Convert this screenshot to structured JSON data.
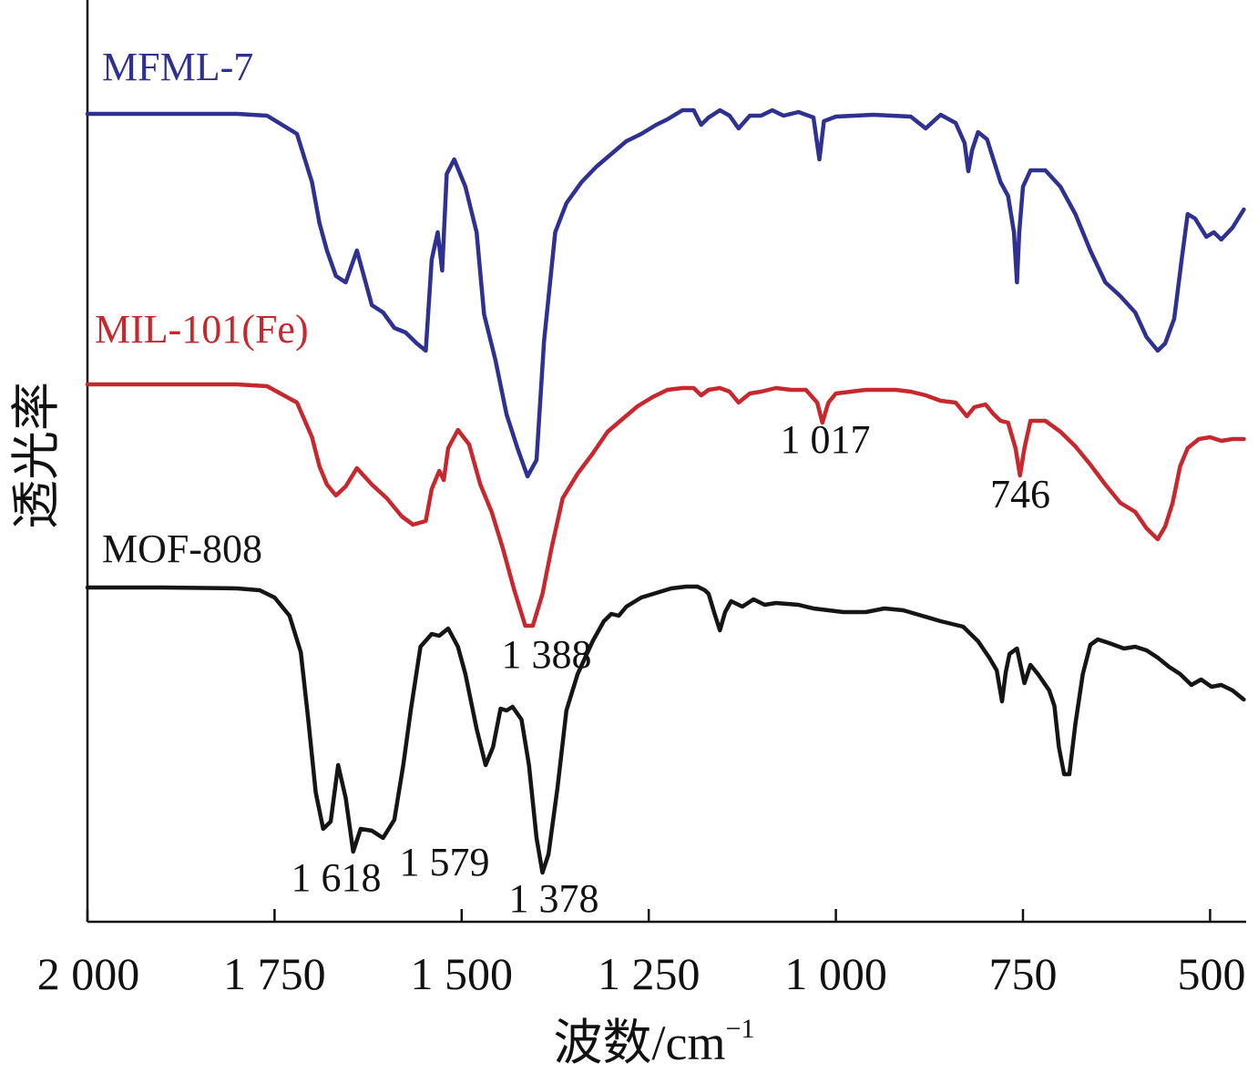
{
  "chart_data": {
    "type": "line",
    "xlabel": "波数/cm",
    "xlabel_superscript": "−1",
    "ylabel": "透光率",
    "xlim": [
      2000,
      455
    ],
    "x_reversed": true,
    "x_ticks": [
      2000,
      1750,
      1500,
      1250,
      1000,
      750,
      500
    ],
    "x_tick_labels": [
      "2 000",
      "1 750",
      "1 500",
      "1 250",
      "1 000",
      "750",
      "500"
    ],
    "y_ticks_shown": false,
    "grid": false,
    "legend": "none",
    "series": [
      {
        "name": "MFML-7",
        "color": "#2e3192",
        "points": [
          [
            2000,
            10
          ],
          [
            1900,
            10
          ],
          [
            1800,
            10
          ],
          [
            1760,
            12
          ],
          [
            1720,
            32
          ],
          [
            1700,
            85
          ],
          [
            1690,
            130
          ],
          [
            1680,
            160
          ],
          [
            1668,
            188
          ],
          [
            1655,
            195
          ],
          [
            1640,
            160
          ],
          [
            1620,
            220
          ],
          [
            1605,
            228
          ],
          [
            1590,
            245
          ],
          [
            1575,
            250
          ],
          [
            1560,
            262
          ],
          [
            1548,
            270
          ],
          [
            1540,
            170
          ],
          [
            1532,
            140
          ],
          [
            1526,
            182
          ],
          [
            1520,
            76
          ],
          [
            1510,
            60
          ],
          [
            1495,
            90
          ],
          [
            1480,
            140
          ],
          [
            1470,
            230
          ],
          [
            1455,
            280
          ],
          [
            1440,
            340
          ],
          [
            1425,
            378
          ],
          [
            1412,
            408
          ],
          [
            1400,
            390
          ],
          [
            1390,
            260
          ],
          [
            1375,
            140
          ],
          [
            1360,
            108
          ],
          [
            1340,
            85
          ],
          [
            1320,
            68
          ],
          [
            1300,
            54
          ],
          [
            1280,
            40
          ],
          [
            1260,
            32
          ],
          [
            1240,
            22
          ],
          [
            1225,
            16
          ],
          [
            1205,
            6
          ],
          [
            1190,
            6
          ],
          [
            1180,
            22
          ],
          [
            1170,
            14
          ],
          [
            1155,
            6
          ],
          [
            1142,
            12
          ],
          [
            1130,
            26
          ],
          [
            1115,
            12
          ],
          [
            1100,
            12
          ],
          [
            1085,
            6
          ],
          [
            1070,
            12
          ],
          [
            1050,
            8
          ],
          [
            1030,
            14
          ],
          [
            1022,
            60
          ],
          [
            1016,
            18
          ],
          [
            1000,
            13
          ],
          [
            950,
            11
          ],
          [
            900,
            13
          ],
          [
            880,
            26
          ],
          [
            860,
            11
          ],
          [
            840,
            20
          ],
          [
            828,
            42
          ],
          [
            823,
            73
          ],
          [
            818,
            50
          ],
          [
            810,
            30
          ],
          [
            798,
            38
          ],
          [
            780,
            85
          ],
          [
            770,
            100
          ],
          [
            762,
            140
          ],
          [
            758,
            195
          ],
          [
            755,
            140
          ],
          [
            750,
            90
          ],
          [
            740,
            72
          ],
          [
            720,
            72
          ],
          [
            700,
            90
          ],
          [
            680,
            120
          ],
          [
            660,
            160
          ],
          [
            640,
            195
          ],
          [
            620,
            210
          ],
          [
            600,
            228
          ],
          [
            585,
            255
          ],
          [
            570,
            270
          ],
          [
            560,
            262
          ],
          [
            548,
            235
          ],
          [
            538,
            170
          ],
          [
            530,
            120
          ],
          [
            520,
            125
          ],
          [
            505,
            145
          ],
          [
            495,
            140
          ],
          [
            485,
            148
          ],
          [
            470,
            135
          ],
          [
            455,
            115
          ]
        ]
      },
      {
        "name": "MIL-101(Fe)",
        "color": "#c7282e",
        "points": [
          [
            2000,
            20
          ],
          [
            1900,
            20
          ],
          [
            1800,
            20
          ],
          [
            1760,
            22
          ],
          [
            1720,
            40
          ],
          [
            1700,
            78
          ],
          [
            1690,
            110
          ],
          [
            1680,
            130
          ],
          [
            1668,
            142
          ],
          [
            1655,
            132
          ],
          [
            1640,
            112
          ],
          [
            1620,
            130
          ],
          [
            1600,
            145
          ],
          [
            1580,
            165
          ],
          [
            1565,
            174
          ],
          [
            1548,
            170
          ],
          [
            1540,
            135
          ],
          [
            1530,
            115
          ],
          [
            1524,
            125
          ],
          [
            1518,
            90
          ],
          [
            1505,
            70
          ],
          [
            1490,
            86
          ],
          [
            1475,
            130
          ],
          [
            1460,
            160
          ],
          [
            1445,
            200
          ],
          [
            1430,
            245
          ],
          [
            1415,
            285
          ],
          [
            1405,
            285
          ],
          [
            1392,
            250
          ],
          [
            1380,
            200
          ],
          [
            1365,
            145
          ],
          [
            1345,
            118
          ],
          [
            1325,
            96
          ],
          [
            1305,
            72
          ],
          [
            1285,
            58
          ],
          [
            1265,
            44
          ],
          [
            1245,
            34
          ],
          [
            1225,
            26
          ],
          [
            1205,
            24
          ],
          [
            1190,
            24
          ],
          [
            1180,
            32
          ],
          [
            1170,
            26
          ],
          [
            1155,
            24
          ],
          [
            1142,
            28
          ],
          [
            1130,
            40
          ],
          [
            1115,
            30
          ],
          [
            1100,
            28
          ],
          [
            1080,
            24
          ],
          [
            1060,
            26
          ],
          [
            1040,
            26
          ],
          [
            1025,
            40
          ],
          [
            1018,
            62
          ],
          [
            1010,
            40
          ],
          [
            1000,
            30
          ],
          [
            960,
            26
          ],
          [
            920,
            26
          ],
          [
            900,
            28
          ],
          [
            880,
            32
          ],
          [
            860,
            38
          ],
          [
            840,
            40
          ],
          [
            825,
            55
          ],
          [
            815,
            45
          ],
          [
            800,
            42
          ],
          [
            790,
            52
          ],
          [
            780,
            60
          ],
          [
            770,
            62
          ],
          [
            760,
            90
          ],
          [
            754,
            120
          ],
          [
            748,
            90
          ],
          [
            740,
            60
          ],
          [
            720,
            60
          ],
          [
            700,
            72
          ],
          [
            680,
            88
          ],
          [
            660,
            108
          ],
          [
            640,
            130
          ],
          [
            620,
            150
          ],
          [
            600,
            160
          ],
          [
            585,
            178
          ],
          [
            570,
            190
          ],
          [
            560,
            176
          ],
          [
            550,
            150
          ],
          [
            540,
            110
          ],
          [
            530,
            90
          ],
          [
            515,
            80
          ],
          [
            500,
            78
          ],
          [
            485,
            82
          ],
          [
            470,
            80
          ],
          [
            455,
            80
          ]
        ]
      },
      {
        "name": "MOF-808",
        "color": "#151515",
        "points": [
          [
            2000,
            5
          ],
          [
            1900,
            5
          ],
          [
            1800,
            6
          ],
          [
            1770,
            8
          ],
          [
            1750,
            16
          ],
          [
            1730,
            36
          ],
          [
            1715,
            76
          ],
          [
            1705,
            150
          ],
          [
            1695,
            230
          ],
          [
            1685,
            270
          ],
          [
            1675,
            262
          ],
          [
            1665,
            200
          ],
          [
            1655,
            236
          ],
          [
            1645,
            295
          ],
          [
            1635,
            270
          ],
          [
            1620,
            272
          ],
          [
            1605,
            280
          ],
          [
            1590,
            260
          ],
          [
            1578,
            200
          ],
          [
            1568,
            140
          ],
          [
            1555,
            70
          ],
          [
            1540,
            56
          ],
          [
            1530,
            58
          ],
          [
            1518,
            50
          ],
          [
            1505,
            70
          ],
          [
            1495,
            100
          ],
          [
            1480,
            160
          ],
          [
            1468,
            200
          ],
          [
            1458,
            180
          ],
          [
            1448,
            138
          ],
          [
            1440,
            140
          ],
          [
            1432,
            136
          ],
          [
            1420,
            150
          ],
          [
            1410,
            200
          ],
          [
            1400,
            280
          ],
          [
            1392,
            318
          ],
          [
            1384,
            298
          ],
          [
            1372,
            225
          ],
          [
            1360,
            140
          ],
          [
            1345,
            100
          ],
          [
            1325,
            64
          ],
          [
            1310,
            42
          ],
          [
            1300,
            34
          ],
          [
            1290,
            36
          ],
          [
            1280,
            26
          ],
          [
            1260,
            16
          ],
          [
            1240,
            11
          ],
          [
            1220,
            6
          ],
          [
            1200,
            4
          ],
          [
            1185,
            4
          ],
          [
            1175,
            8
          ],
          [
            1170,
            12
          ],
          [
            1162,
            34
          ],
          [
            1155,
            52
          ],
          [
            1148,
            32
          ],
          [
            1140,
            20
          ],
          [
            1125,
            26
          ],
          [
            1110,
            18
          ],
          [
            1095,
            24
          ],
          [
            1080,
            22
          ],
          [
            1050,
            24
          ],
          [
            1030,
            28
          ],
          [
            1010,
            30
          ],
          [
            990,
            32
          ],
          [
            960,
            32
          ],
          [
            935,
            28
          ],
          [
            910,
            30
          ],
          [
            885,
            36
          ],
          [
            860,
            42
          ],
          [
            830,
            48
          ],
          [
            810,
            64
          ],
          [
            795,
            82
          ],
          [
            785,
            96
          ],
          [
            778,
            130
          ],
          [
            773,
            98
          ],
          [
            768,
            78
          ],
          [
            758,
            72
          ],
          [
            748,
            110
          ],
          [
            740,
            90
          ],
          [
            730,
            100
          ],
          [
            715,
            118
          ],
          [
            708,
            135
          ],
          [
            702,
            180
          ],
          [
            695,
            210
          ],
          [
            688,
            210
          ],
          [
            680,
            155
          ],
          [
            670,
            100
          ],
          [
            660,
            68
          ],
          [
            650,
            62
          ],
          [
            635,
            66
          ],
          [
            615,
            72
          ],
          [
            600,
            70
          ],
          [
            585,
            74
          ],
          [
            570,
            82
          ],
          [
            555,
            92
          ],
          [
            540,
            100
          ],
          [
            525,
            112
          ],
          [
            512,
            106
          ],
          [
            498,
            114
          ],
          [
            485,
            112
          ],
          [
            470,
            118
          ],
          [
            455,
            128
          ]
        ]
      }
    ],
    "annotations": [
      {
        "text": "1 017",
        "x": 1017
      },
      {
        "text": "746",
        "x": 746
      },
      {
        "text": "1 388",
        "x": 1388
      },
      {
        "text": "1 618",
        "x": 1618
      },
      {
        "text": "1 579",
        "x": 1579
      },
      {
        "text": "1 378",
        "x": 1378
      }
    ]
  }
}
